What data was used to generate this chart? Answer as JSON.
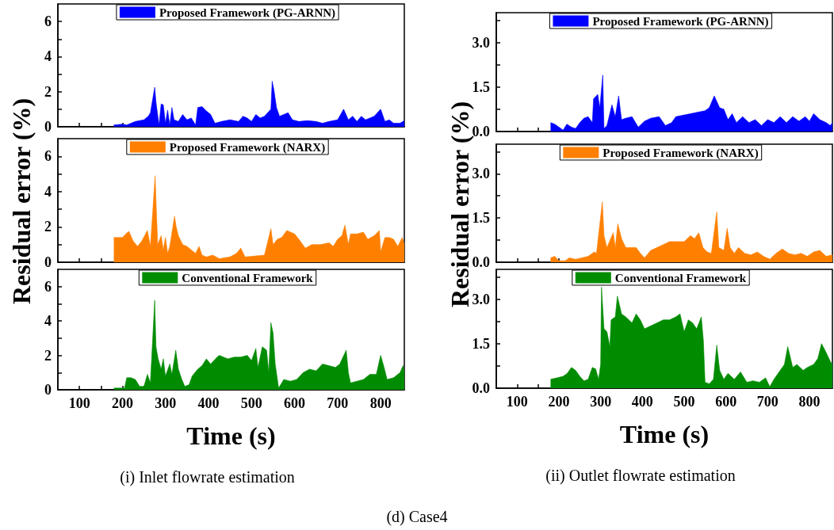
{
  "chart_data": [
    {
      "type": "area",
      "legend": "top",
      "tick_labels": "y",
      "xlim": [
        50,
        855
      ],
      "xticks": [
        100,
        {
          "value": 150,
          "label": null
        },
        200,
        {
          "value": 250,
          "label": null
        },
        300,
        {
          "value": 350,
          "label": null
        },
        400,
        {
          "value": 450,
          "label": null
        },
        500,
        {
          "value": 550,
          "label": null
        },
        600,
        {
          "value": 650,
          "label": null
        },
        700,
        {
          "value": 750,
          "label": null
        },
        800
      ],
      "ylim": [
        0,
        7
      ],
      "yticks": [
        0,
        {
          "value": 1,
          "label": null
        },
        2,
        {
          "value": 3,
          "label": null
        },
        4,
        {
          "value": 5,
          "label": null
        },
        6
      ],
      "series": [
        {
          "name": "Proposed Framework (PG-ARNN)",
          "color": "#0000ff",
          "x": [
            180,
            200,
            210,
            220,
            230,
            240,
            250,
            260,
            265,
            275,
            278,
            285,
            290,
            295,
            300,
            305,
            310,
            315,
            320,
            330,
            340,
            350,
            360,
            370,
            375,
            385,
            395,
            405,
            415,
            430,
            450,
            470,
            480,
            490,
            500,
            510,
            520,
            530,
            545,
            548,
            552,
            558,
            565,
            575,
            585,
            595,
            610,
            630,
            650,
            665,
            680,
            700,
            714,
            725,
            735,
            745,
            755,
            765,
            775,
            785,
            800,
            810,
            820,
            830,
            845,
            855
          ],
          "values": [
            0.1,
            0.15,
            0.1,
            0.2,
            0.3,
            0.35,
            0.4,
            0.6,
            0.8,
            2.25,
            1.4,
            0.1,
            1.3,
            1.25,
            0.2,
            0.95,
            0.1,
            1.1,
            0.4,
            0.3,
            0.7,
            0.4,
            0.5,
            0.1,
            1.1,
            1.15,
            0.9,
            0.7,
            0.2,
            0.3,
            0.4,
            0.3,
            0.6,
            0.5,
            0.3,
            0.7,
            0.5,
            0.6,
            1.0,
            2.6,
            2.1,
            1.1,
            0.6,
            0.7,
            0.8,
            0.4,
            0.3,
            0.35,
            0.3,
            0.2,
            0.3,
            0.4,
            1.0,
            0.4,
            0.6,
            0.3,
            0.6,
            0.4,
            0.5,
            0.6,
            1.0,
            0.3,
            0.4,
            0.2,
            0.2,
            0.35
          ]
        }
      ]
    },
    {
      "type": "area",
      "legend": "top",
      "tick_labels": "y",
      "ylabel": "Residual error (%)",
      "xlim": [
        50,
        855
      ],
      "xticks": [
        100,
        {
          "value": 150,
          "label": null
        },
        200,
        {
          "value": 250,
          "label": null
        },
        300,
        {
          "value": 350,
          "label": null
        },
        400,
        {
          "value": 450,
          "label": null
        },
        500,
        {
          "value": 550,
          "label": null
        },
        600,
        {
          "value": 650,
          "label": null
        },
        700,
        {
          "value": 750,
          "label": null
        },
        800
      ],
      "ylim": [
        0,
        7
      ],
      "yticks": [
        0,
        {
          "value": 1,
          "label": null
        },
        2,
        {
          "value": 3,
          "label": null
        },
        4,
        {
          "value": 5,
          "label": null
        },
        6
      ],
      "series": [
        {
          "name": "Proposed Framework (NARX)",
          "color": "#ff8000",
          "x": [
            180,
            200,
            210,
            215,
            225,
            235,
            245,
            258,
            265,
            276,
            278,
            282,
            290,
            295,
            300,
            305,
            310,
            321,
            325,
            330,
            340,
            350,
            360,
            370,
            378,
            385,
            395,
            410,
            425,
            450,
            465,
            475,
            485,
            530,
            545,
            550,
            560,
            570,
            582,
            600,
            610,
            625,
            640,
            660,
            680,
            690,
            700,
            710,
            717,
            725,
            730,
            745,
            760,
            770,
            785,
            797,
            800,
            810,
            820,
            830,
            840,
            850,
            855
          ],
          "values": [
            1.4,
            1.4,
            1.65,
            1.75,
            1.2,
            0.9,
            1.2,
            1.8,
            0.9,
            4.9,
            3.5,
            1.0,
            1.5,
            0.7,
            1.4,
            0.5,
            0.9,
            2.6,
            2.0,
            1.5,
            1.0,
            0.9,
            0.7,
            0.5,
            0.9,
            0.4,
            0.3,
            0.4,
            0.2,
            0.3,
            0.5,
            0.8,
            0.3,
            0.4,
            1.9,
            1.0,
            1.3,
            1.4,
            1.8,
            1.6,
            1.3,
            0.8,
            1.0,
            1.0,
            1.1,
            0.9,
            1.3,
            1.5,
            2.1,
            1.0,
            1.6,
            1.6,
            1.7,
            1.3,
            1.5,
            1.8,
            0.6,
            1.4,
            1.4,
            1.3,
            0.9,
            1.4,
            1.0
          ]
        }
      ]
    },
    {
      "type": "area",
      "legend": "top",
      "xlabel": "Time (s)",
      "annotations": [
        "(i) Inlet flowrate estimation",
        "(d) Case4"
      ],
      "xlim": [
        50,
        855
      ],
      "xticks": [
        100,
        {
          "value": 150,
          "label": null
        },
        200,
        {
          "value": 250,
          "label": null
        },
        300,
        {
          "value": 350,
          "label": null
        },
        400,
        {
          "value": 450,
          "label": null
        },
        500,
        {
          "value": 550,
          "label": null
        },
        600,
        {
          "value": 650,
          "label": null
        },
        700,
        {
          "value": 750,
          "label": null
        },
        800
      ],
      "ylim": [
        0,
        7
      ],
      "yticks": [
        0,
        {
          "value": 1,
          "label": null
        },
        2,
        {
          "value": 3,
          "label": null
        },
        4,
        {
          "value": 5,
          "label": null
        },
        6
      ],
      "series": [
        {
          "name": "Conventional Framework",
          "color": "#008c00",
          "x": [
            180,
            205,
            210,
            220,
            230,
            240,
            250,
            258,
            265,
            275,
            278,
            283,
            290,
            295,
            300,
            310,
            315,
            324,
            330,
            338,
            345,
            355,
            362,
            375,
            385,
            395,
            405,
            420,
            425,
            445,
            460,
            475,
            490,
            500,
            510,
            515,
            525,
            535,
            540,
            545,
            550,
            555,
            563,
            575,
            590,
            605,
            620,
            635,
            650,
            665,
            680,
            695,
            705,
            720,
            725,
            730,
            745,
            760,
            775,
            790,
            800,
            808,
            815,
            830,
            845,
            852,
            855
          ],
          "values": [
            0.1,
            0.1,
            0.7,
            0.7,
            0.6,
            0.2,
            0.2,
            0.9,
            0.4,
            5.2,
            2.5,
            1.8,
            1.2,
            1.8,
            0.8,
            1.5,
            0.9,
            2.3,
            1.2,
            0.6,
            0.2,
            0.3,
            0.8,
            1.2,
            1.4,
            1.8,
            1.5,
            1.9,
            2.0,
            1.8,
            1.9,
            1.9,
            2.0,
            1.7,
            2.4,
            1.3,
            2.5,
            2.3,
            1.0,
            3.9,
            3.3,
            1.5,
            0.1,
            0.6,
            0.5,
            0.6,
            1.0,
            1.2,
            1.1,
            1.5,
            1.4,
            1.3,
            1.5,
            2.3,
            1.0,
            0.4,
            0.5,
            0.6,
            0.9,
            0.9,
            2.0,
            1.3,
            0.6,
            0.7,
            1.0,
            1.4,
            1.0
          ]
        }
      ]
    },
    {
      "type": "area",
      "legend": "top",
      "tick_labels": "y",
      "xlim": [
        50,
        855
      ],
      "xticks": [
        100,
        {
          "value": 150,
          "label": null
        },
        200,
        {
          "value": 250,
          "label": null
        },
        300,
        {
          "value": 350,
          "label": null
        },
        400,
        {
          "value": 450,
          "label": null
        },
        500,
        {
          "value": 550,
          "label": null
        },
        600,
        {
          "value": 650,
          "label": null
        },
        700,
        {
          "value": 750,
          "label": null
        },
        800
      ],
      "ylim": [
        0,
        4
      ],
      "yticks": [
        {
          "value": 0,
          "label": "0.0"
        },
        {
          "value": 0.75,
          "label": null
        },
        {
          "value": 1.5,
          "label": "1.5"
        },
        {
          "value": 2.25,
          "label": null
        },
        {
          "value": 3,
          "label": "3.0"
        },
        {
          "value": 3.75,
          "label": null
        }
      ],
      "series": [
        {
          "name": "Proposed Framework (PG-ARNN)",
          "color": "#0000ff",
          "x": [
            180,
            190,
            200,
            210,
            219,
            230,
            240,
            250,
            260,
            270,
            280,
            283,
            293,
            298,
            305,
            308,
            315,
            327,
            335,
            343,
            350,
            360,
            375,
            390,
            405,
            420,
            440,
            455,
            470,
            480,
            550,
            560,
            572,
            585,
            595,
            605,
            615,
            625,
            640,
            655,
            670,
            685,
            700,
            715,
            730,
            745,
            760,
            775,
            790,
            800,
            810,
            825,
            840,
            850,
            855
          ],
          "values": [
            0.3,
            0.25,
            0.15,
            0.05,
            0.25,
            0.15,
            0.1,
            0.3,
            0.45,
            0.5,
            0.3,
            1.1,
            1.25,
            0.8,
            1.9,
            0.1,
            0.2,
            0.9,
            0.5,
            1.2,
            0.4,
            0.45,
            0.5,
            0.15,
            0.35,
            0.45,
            0.5,
            0.2,
            0.3,
            0.5,
            0.7,
            0.8,
            1.2,
            0.8,
            0.75,
            0.4,
            0.6,
            0.3,
            0.5,
            0.3,
            0.4,
            0.2,
            0.4,
            0.3,
            0.5,
            0.3,
            0.5,
            0.35,
            0.5,
            0.35,
            0.6,
            0.4,
            0.3,
            0.2,
            0.3
          ]
        }
      ]
    },
    {
      "type": "area",
      "legend": "top",
      "tick_labels": "y",
      "ylabel": "Residual error (%)",
      "xlim": [
        50,
        855
      ],
      "xticks": [
        100,
        {
          "value": 150,
          "label": null
        },
        200,
        {
          "value": 250,
          "label": null
        },
        300,
        {
          "value": 350,
          "label": null
        },
        400,
        {
          "value": 450,
          "label": null
        },
        500,
        {
          "value": 550,
          "label": null
        },
        600,
        {
          "value": 650,
          "label": null
        },
        700,
        {
          "value": 750,
          "label": null
        },
        800
      ],
      "ylim": [
        0,
        4
      ],
      "yticks": [
        {
          "value": 0,
          "label": "0.0"
        },
        {
          "value": 0.75,
          "label": null
        },
        {
          "value": 1.5,
          "label": "1.5"
        },
        {
          "value": 2.25,
          "label": null
        },
        {
          "value": 3,
          "label": "3.0"
        },
        {
          "value": 3.75,
          "label": null
        }
      ],
      "series": [
        {
          "name": "Proposed Framework (NARX)",
          "color": "#ff8000",
          "x": [
            180,
            190,
            200,
            215,
            225,
            240,
            255,
            270,
            285,
            290,
            304,
            308,
            315,
            330,
            335,
            341,
            350,
            360,
            370,
            385,
            395,
            405,
            420,
            435,
            450,
            465,
            480,
            500,
            515,
            525,
            535,
            545,
            555,
            565,
            578,
            583,
            595,
            603,
            610,
            620,
            630,
            645,
            660,
            675,
            690,
            705,
            720,
            735,
            750,
            765,
            780,
            795,
            810,
            825,
            840,
            855
          ],
          "values": [
            0.15,
            0.2,
            0.05,
            0.05,
            0.15,
            0.1,
            0.15,
            0.2,
            0.35,
            0.3,
            2.05,
            0.9,
            0.5,
            1.0,
            0.5,
            1.3,
            0.8,
            0.5,
            0.5,
            0.5,
            0.3,
            0.15,
            0.4,
            0.5,
            0.6,
            0.7,
            0.7,
            0.7,
            0.9,
            0.8,
            1.0,
            0.5,
            0.35,
            0.3,
            1.7,
            0.5,
            0.4,
            1.15,
            0.5,
            0.3,
            0.5,
            0.3,
            0.25,
            0.35,
            0.2,
            0.1,
            0.3,
            0.45,
            0.3,
            0.25,
            0.3,
            0.2,
            0.35,
            0.4,
            0.2,
            0.25
          ]
        }
      ]
    },
    {
      "type": "area",
      "legend": "top",
      "xlabel": "Time (s)",
      "annotations": [
        "(ii) Outlet flowrate estimation"
      ],
      "xlim": [
        50,
        855
      ],
      "xticks": [
        100,
        {
          "value": 150,
          "label": null
        },
        200,
        {
          "value": 250,
          "label": null
        },
        300,
        {
          "value": 350,
          "label": null
        },
        400,
        {
          "value": 450,
          "label": null
        },
        500,
        {
          "value": 550,
          "label": null
        },
        600,
        {
          "value": 650,
          "label": null
        },
        700,
        {
          "value": 750,
          "label": null
        },
        800
      ],
      "ylim": [
        0,
        4
      ],
      "yticks": [
        {
          "value": 0,
          "label": "0.0"
        },
        {
          "value": 0.75,
          "label": null
        },
        {
          "value": 1.5,
          "label": "1.5"
        },
        {
          "value": 2.25,
          "label": null
        },
        {
          "value": 3,
          "label": "3.0"
        },
        {
          "value": 3.75,
          "label": null
        }
      ],
      "series": [
        {
          "name": "Conventional Framework",
          "color": "#008c00",
          "x": [
            180,
            195,
            210,
            220,
            230,
            240,
            250,
            260,
            270,
            280,
            288,
            295,
            300,
            302,
            308,
            315,
            322,
            325,
            335,
            340,
            350,
            360,
            375,
            385,
            395,
            405,
            420,
            435,
            450,
            465,
            480,
            490,
            500,
            510,
            520,
            530,
            541,
            546,
            550,
            560,
            570,
            578,
            585,
            595,
            605,
            620,
            635,
            650,
            665,
            680,
            695,
            705,
            715,
            725,
            740,
            748,
            760,
            770,
            785,
            795,
            810,
            820,
            829,
            840,
            850,
            855
          ],
          "values": [
            0.3,
            0.35,
            0.4,
            0.5,
            0.7,
            0.6,
            0.4,
            0.25,
            0.3,
            0.7,
            0.65,
            0.3,
            0.8,
            3.4,
            2.0,
            1.9,
            1.4,
            2.3,
            2.4,
            3.1,
            2.5,
            2.4,
            2.2,
            2.5,
            2.3,
            2.0,
            2.1,
            2.2,
            2.3,
            2.3,
            2.4,
            2.5,
            1.9,
            2.3,
            2.2,
            2.0,
            2.4,
            1.6,
            0.2,
            0.15,
            0.3,
            1.45,
            0.6,
            0.3,
            0.5,
            0.3,
            0.55,
            0.2,
            0.25,
            0.2,
            0.35,
            0.05,
            0.3,
            0.5,
            0.8,
            1.4,
            0.7,
            0.8,
            0.6,
            0.7,
            0.8,
            1.0,
            1.5,
            1.2,
            0.9,
            0.8
          ]
        }
      ]
    }
  ]
}
